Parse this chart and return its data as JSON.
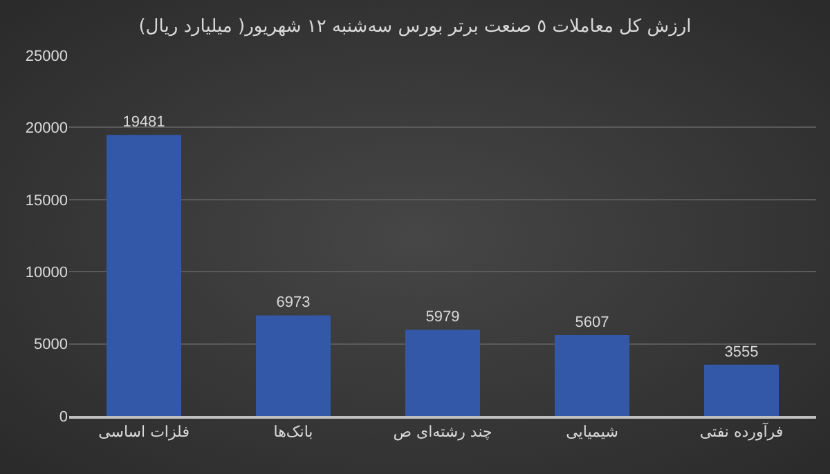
{
  "chart_data": {
    "type": "bar",
    "title": "ارزش کل معاملات ٥ صنعت برتر بورس سه‌شنبه ١٢ شهریور( میلیارد ریال)",
    "categories": [
      "فلزات اساسی",
      "بانک‌ها",
      "چند رشته‌ای ص",
      "شیمیایی",
      "فرآورده نفتی"
    ],
    "values": [
      19481,
      6973,
      5979,
      5607,
      3555
    ],
    "color": "#3358a8",
    "ylim": [
      0,
      25000
    ],
    "yticks": [
      0,
      5000,
      10000,
      15000,
      20000,
      25000
    ],
    "grid": "y",
    "data_labels": true
  }
}
